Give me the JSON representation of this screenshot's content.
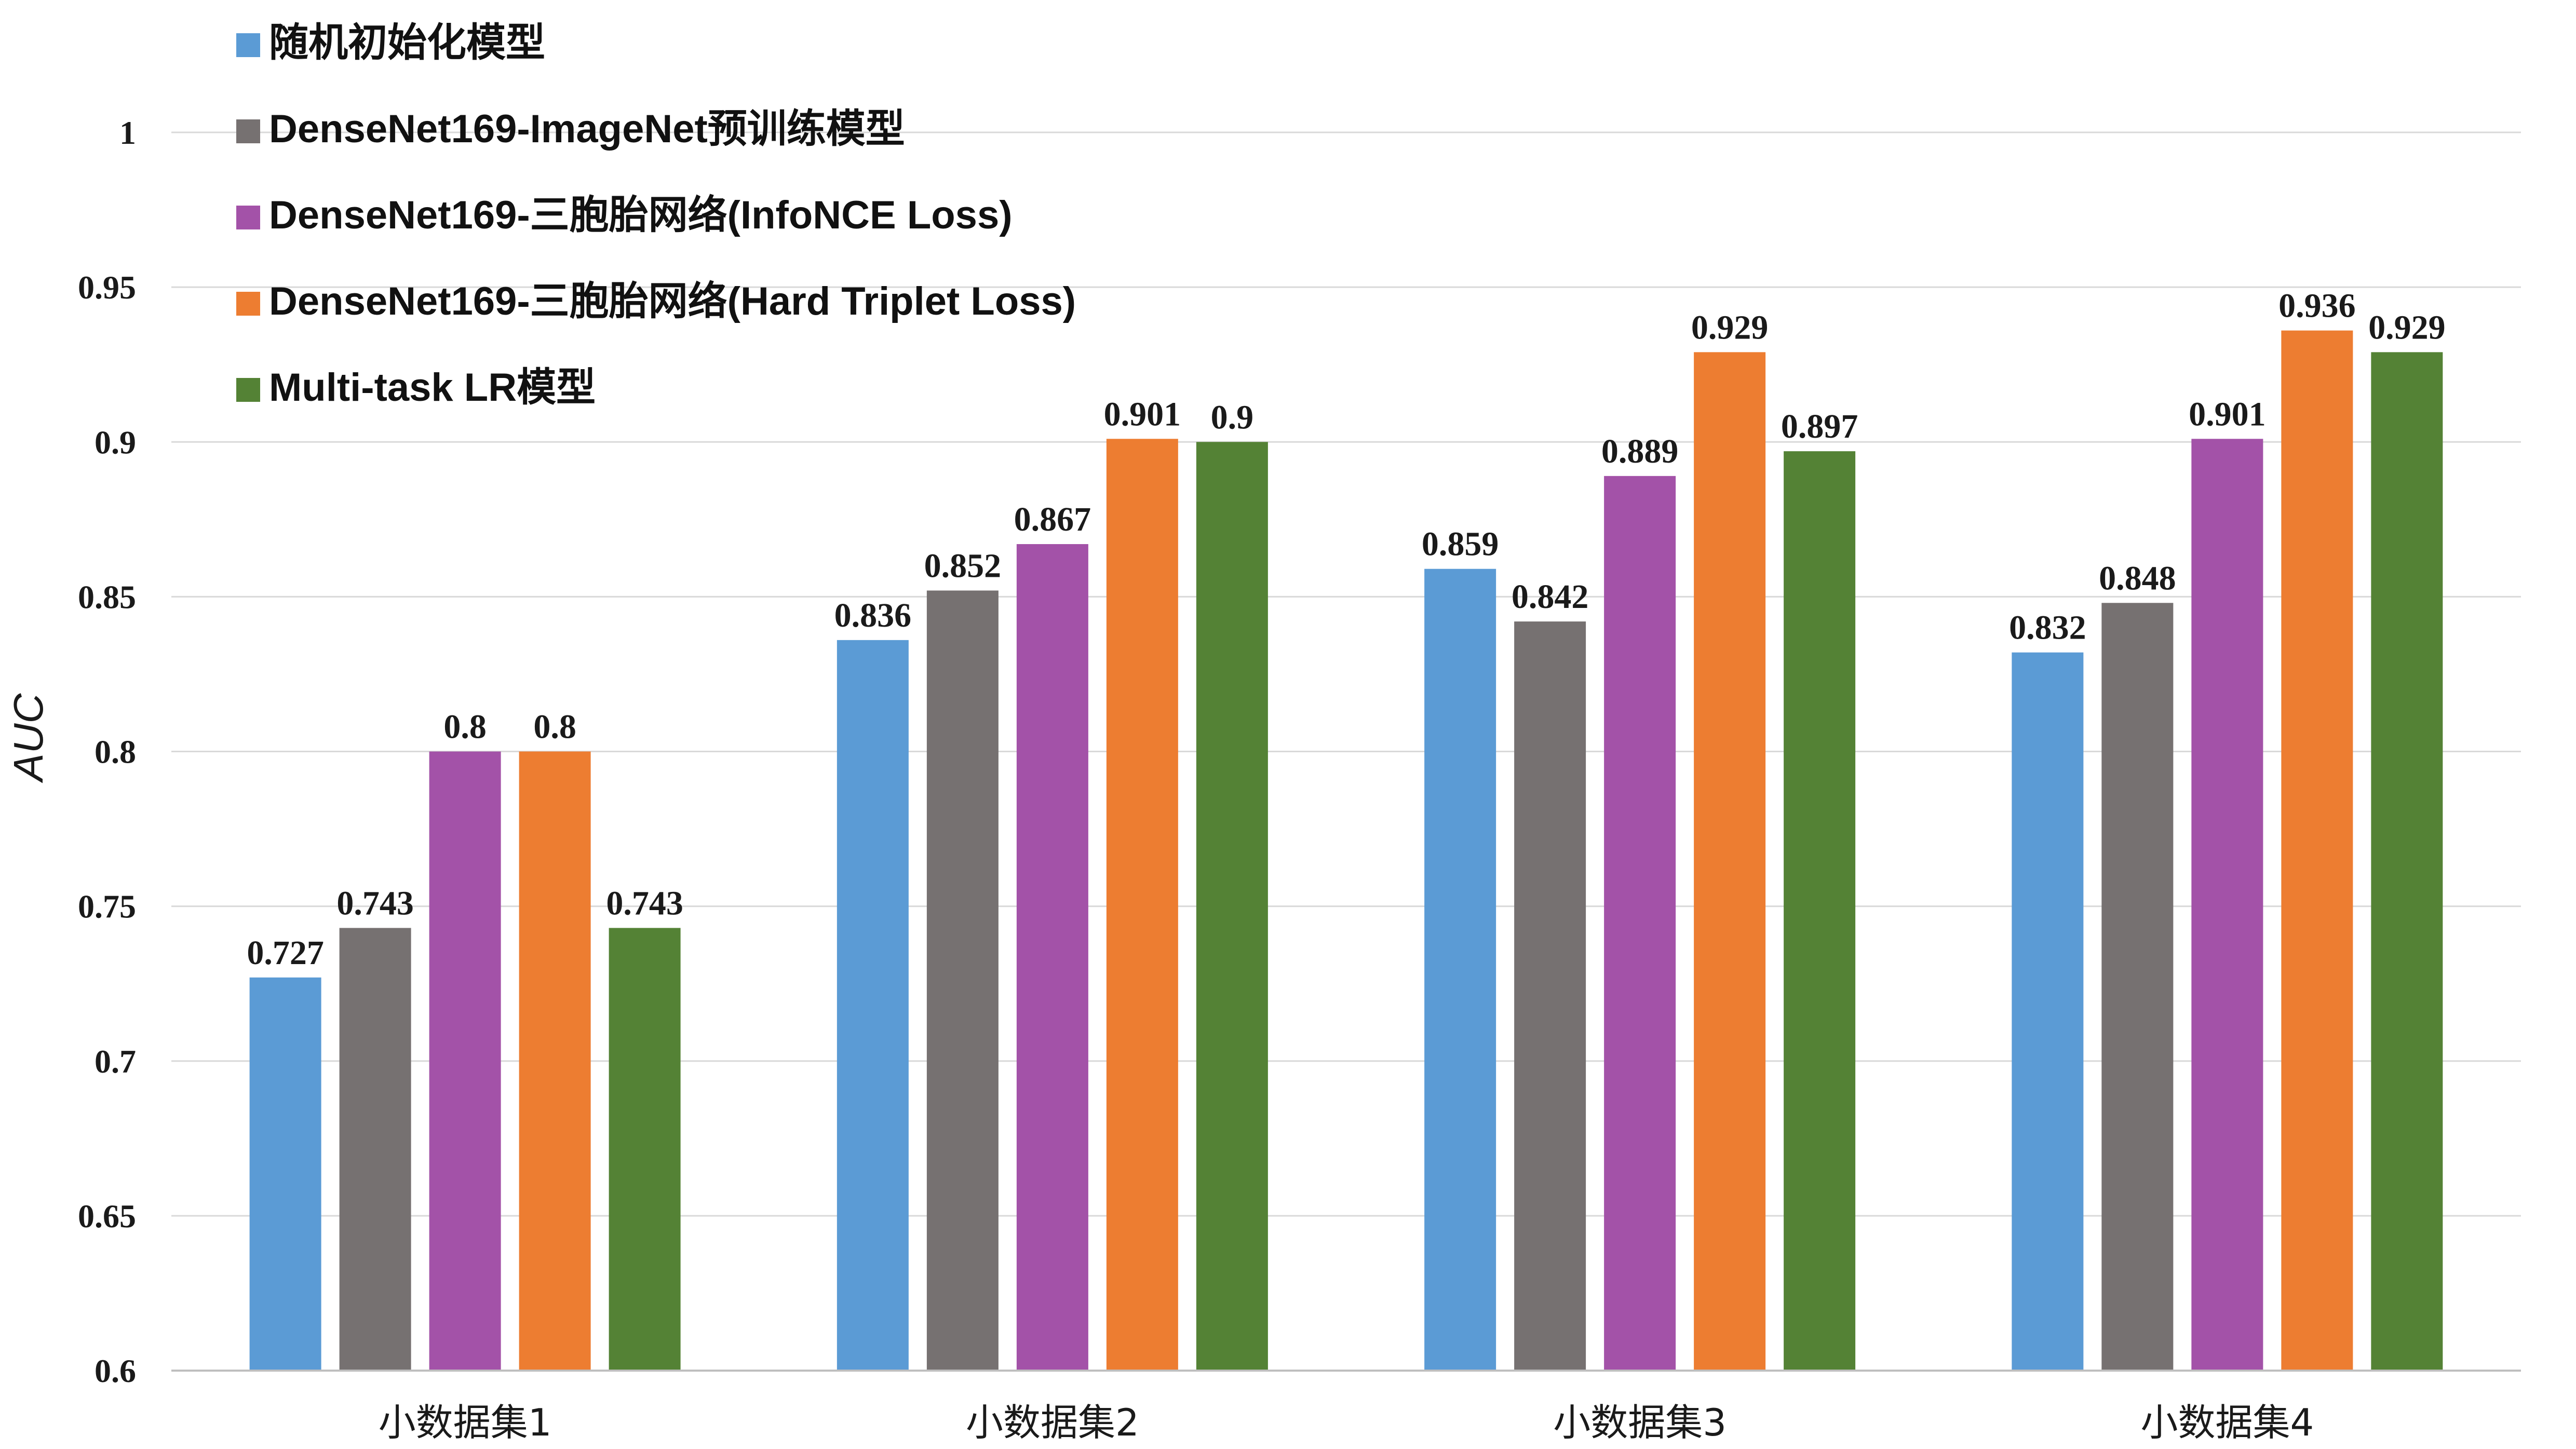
{
  "chart_data": {
    "type": "bar",
    "title": "",
    "xlabel": "",
    "ylabel": "AUC",
    "ylim": [
      0.6,
      1.0
    ],
    "yticks": [
      "0.6",
      "0.65",
      "0.7",
      "0.75",
      "0.8",
      "0.85",
      "0.9",
      "0.95",
      "1"
    ],
    "grid": true,
    "legend_position": "top-left",
    "categories": [
      "小数据集1",
      "小数据集2",
      "小数据集3",
      "小数据集4"
    ],
    "series": [
      {
        "name": "随机初始化模型",
        "color": "#5b9bd5",
        "values": [
          0.727,
          0.836,
          0.859,
          0.832
        ],
        "labels": [
          "0.727",
          "0.836",
          "0.859",
          "0.832"
        ]
      },
      {
        "name": "DenseNet169-ImageNet预训练模型",
        "color": "#767171",
        "values": [
          0.743,
          0.852,
          0.842,
          0.848
        ],
        "labels": [
          "0.743",
          "0.852",
          "0.842",
          "0.848"
        ]
      },
      {
        "name": "DenseNet169-三胞胎网络(InfoNCE Loss)",
        "color": "#a352a8",
        "values": [
          0.8,
          0.867,
          0.889,
          0.901
        ],
        "labels": [
          "0.8",
          "0.867",
          "0.889",
          "0.901"
        ]
      },
      {
        "name": "DenseNet169-三胞胎网络(Hard Triplet Loss)",
        "color": "#ed7d31",
        "values": [
          0.8,
          0.901,
          0.929,
          0.936
        ],
        "labels": [
          "0.8",
          "0.901",
          "0.929",
          "0.936"
        ]
      },
      {
        "name": "Multi-task LR模型",
        "color": "#548235",
        "values": [
          0.743,
          0.9,
          0.897,
          0.929
        ],
        "labels": [
          "0.743",
          "0.9",
          "0.897",
          "0.929"
        ]
      }
    ]
  }
}
